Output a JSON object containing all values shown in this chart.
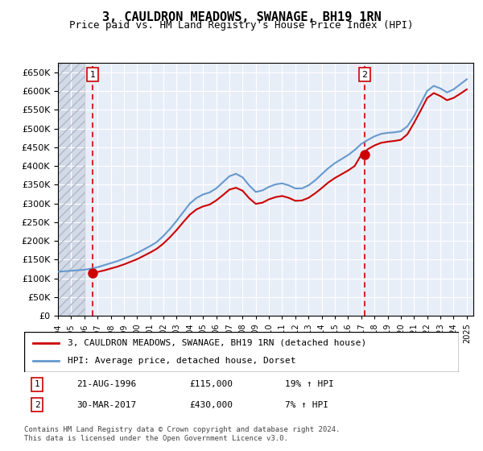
{
  "title": "3, CAULDRON MEADOWS, SWANAGE, BH19 1RN",
  "subtitle": "Price paid vs. HM Land Registry's House Price Index (HPI)",
  "ylabel": "",
  "ylim": [
    0,
    675000
  ],
  "yticks": [
    0,
    50000,
    100000,
    150000,
    200000,
    250000,
    300000,
    350000,
    400000,
    450000,
    500000,
    550000,
    600000,
    650000
  ],
  "xlim_start": 1994.0,
  "xlim_end": 2025.5,
  "bg_color": "#e8eef8",
  "hatch_color": "#c0c8d8",
  "grid_color": "#ffffff",
  "sale1_date": 1996.64,
  "sale1_price": 115000,
  "sale2_date": 2017.24,
  "sale2_price": 430000,
  "legend_line1": "3, CAULDRON MEADOWS, SWANAGE, BH19 1RN (detached house)",
  "legend_line2": "HPI: Average price, detached house, Dorset",
  "table_row1_num": "1",
  "table_row1_date": "21-AUG-1996",
  "table_row1_price": "£115,000",
  "table_row1_hpi": "19% ↑ HPI",
  "table_row2_num": "2",
  "table_row2_date": "30-MAR-2017",
  "table_row2_price": "£430,000",
  "table_row2_hpi": "7% ↑ HPI",
  "footer": "Contains HM Land Registry data © Crown copyright and database right 2024.\nThis data is licensed under the Open Government Licence v3.0.",
  "red_line_color": "#cc0000",
  "blue_line_color": "#6699cc",
  "hpi_years": [
    1994,
    1994.5,
    1995,
    1995.5,
    1996,
    1996.5,
    1997,
    1997.5,
    1998,
    1998.5,
    1999,
    1999.5,
    2000,
    2000.5,
    2001,
    2001.5,
    2002,
    2002.5,
    2003,
    2003.5,
    2004,
    2004.5,
    2005,
    2005.5,
    2006,
    2006.5,
    2007,
    2007.5,
    2008,
    2008.5,
    2009,
    2009.5,
    2010,
    2010.5,
    2011,
    2011.5,
    2012,
    2012.5,
    2013,
    2013.5,
    2014,
    2014.5,
    2015,
    2015.5,
    2016,
    2016.5,
    2017,
    2017.5,
    2018,
    2018.5,
    2019,
    2019.5,
    2020,
    2020.5,
    2021,
    2021.5,
    2022,
    2022.5,
    2023,
    2023.5,
    2024,
    2024.5,
    2025
  ],
  "hpi_values": [
    87000,
    88000,
    89000,
    90000,
    91000,
    93000,
    96000,
    100000,
    104000,
    108000,
    113000,
    118000,
    124000,
    131000,
    138000,
    146000,
    158000,
    172000,
    188000,
    205000,
    222000,
    233000,
    240000,
    244000,
    252000,
    264000,
    276000,
    281000,
    274000,
    258000,
    245000,
    248000,
    255000,
    260000,
    262000,
    258000,
    252000,
    252000,
    258000,
    268000,
    280000,
    292000,
    302000,
    310000,
    318000,
    328000,
    340000,
    348000,
    355000,
    360000,
    362000,
    363000,
    365000,
    375000,
    395000,
    420000,
    445000,
    455000,
    450000,
    442000,
    448000,
    458000,
    468000
  ],
  "hpi_scale_factor": 1.35,
  "price_line_years": [
    1994,
    1994.5,
    1995,
    1995.5,
    1996,
    1996.5,
    1997,
    1997.5,
    1998,
    1998.5,
    1999,
    1999.5,
    2000,
    2000.5,
    2001,
    2001.5,
    2002,
    2002.5,
    2003,
    2003.5,
    2004,
    2004.5,
    2005,
    2005.5,
    2006,
    2006.5,
    2007,
    2007.5,
    2008,
    2008.5,
    2009,
    2009.5,
    2010,
    2010.5,
    2011,
    2011.5,
    2012,
    2012.5,
    2013,
    2013.5,
    2014,
    2014.5,
    2015,
    2015.5,
    2016,
    2016.5,
    2017,
    2017.5,
    2018,
    2018.5,
    2019,
    2019.5,
    2020,
    2020.5,
    2021,
    2021.5,
    2022,
    2022.5,
    2023,
    2023.5,
    2024,
    2024.5,
    2025
  ],
  "price_line_values": [
    null,
    null,
    null,
    null,
    null,
    115000,
    117000,
    121000,
    126000,
    131000,
    137000,
    144000,
    151000,
    160000,
    169000,
    179000,
    193000,
    210000,
    229000,
    250000,
    270000,
    284000,
    292000,
    297000,
    308000,
    322000,
    337000,
    342000,
    334000,
    314000,
    299000,
    302000,
    311000,
    317000,
    320000,
    315000,
    307000,
    308000,
    315000,
    327000,
    341000,
    356000,
    368000,
    378000,
    388000,
    400000,
    430000,
    445000,
    455000,
    462000,
    465000,
    467000,
    470000,
    485000,
    515000,
    548000,
    582000,
    595000,
    587000,
    576000,
    582000,
    593000,
    605000
  ]
}
